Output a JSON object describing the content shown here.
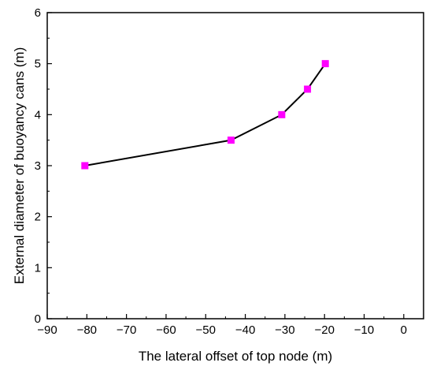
{
  "chart_data": {
    "type": "line",
    "title": "",
    "xlabel": "The lateral offset of top node (m)",
    "ylabel": "External diameter of buoyancy cans (m)",
    "xlim": [
      -90,
      5
    ],
    "ylim": [
      0,
      6
    ],
    "xticks": [
      -90,
      -80,
      -70,
      -60,
      -50,
      -40,
      -30,
      -20,
      -10,
      0
    ],
    "yticks": [
      0,
      1,
      2,
      3,
      4,
      5,
      6
    ],
    "xtick_labels": [
      "−90",
      "−80",
      "−70",
      "−60",
      "−50",
      "−40",
      "−30",
      "−20",
      "−10",
      "0"
    ],
    "ytick_labels": [
      "0",
      "1",
      "2",
      "3",
      "4",
      "5",
      "6"
    ],
    "grid": false,
    "series": [
      {
        "x": [
          -80.5,
          -43.6,
          -30.8,
          -24.3,
          -19.8
        ],
        "y": [
          3.0,
          3.5,
          4.0,
          4.5,
          5.0
        ],
        "line_color": "#000000",
        "marker": "square",
        "marker_color": "#ff00ff"
      }
    ]
  }
}
